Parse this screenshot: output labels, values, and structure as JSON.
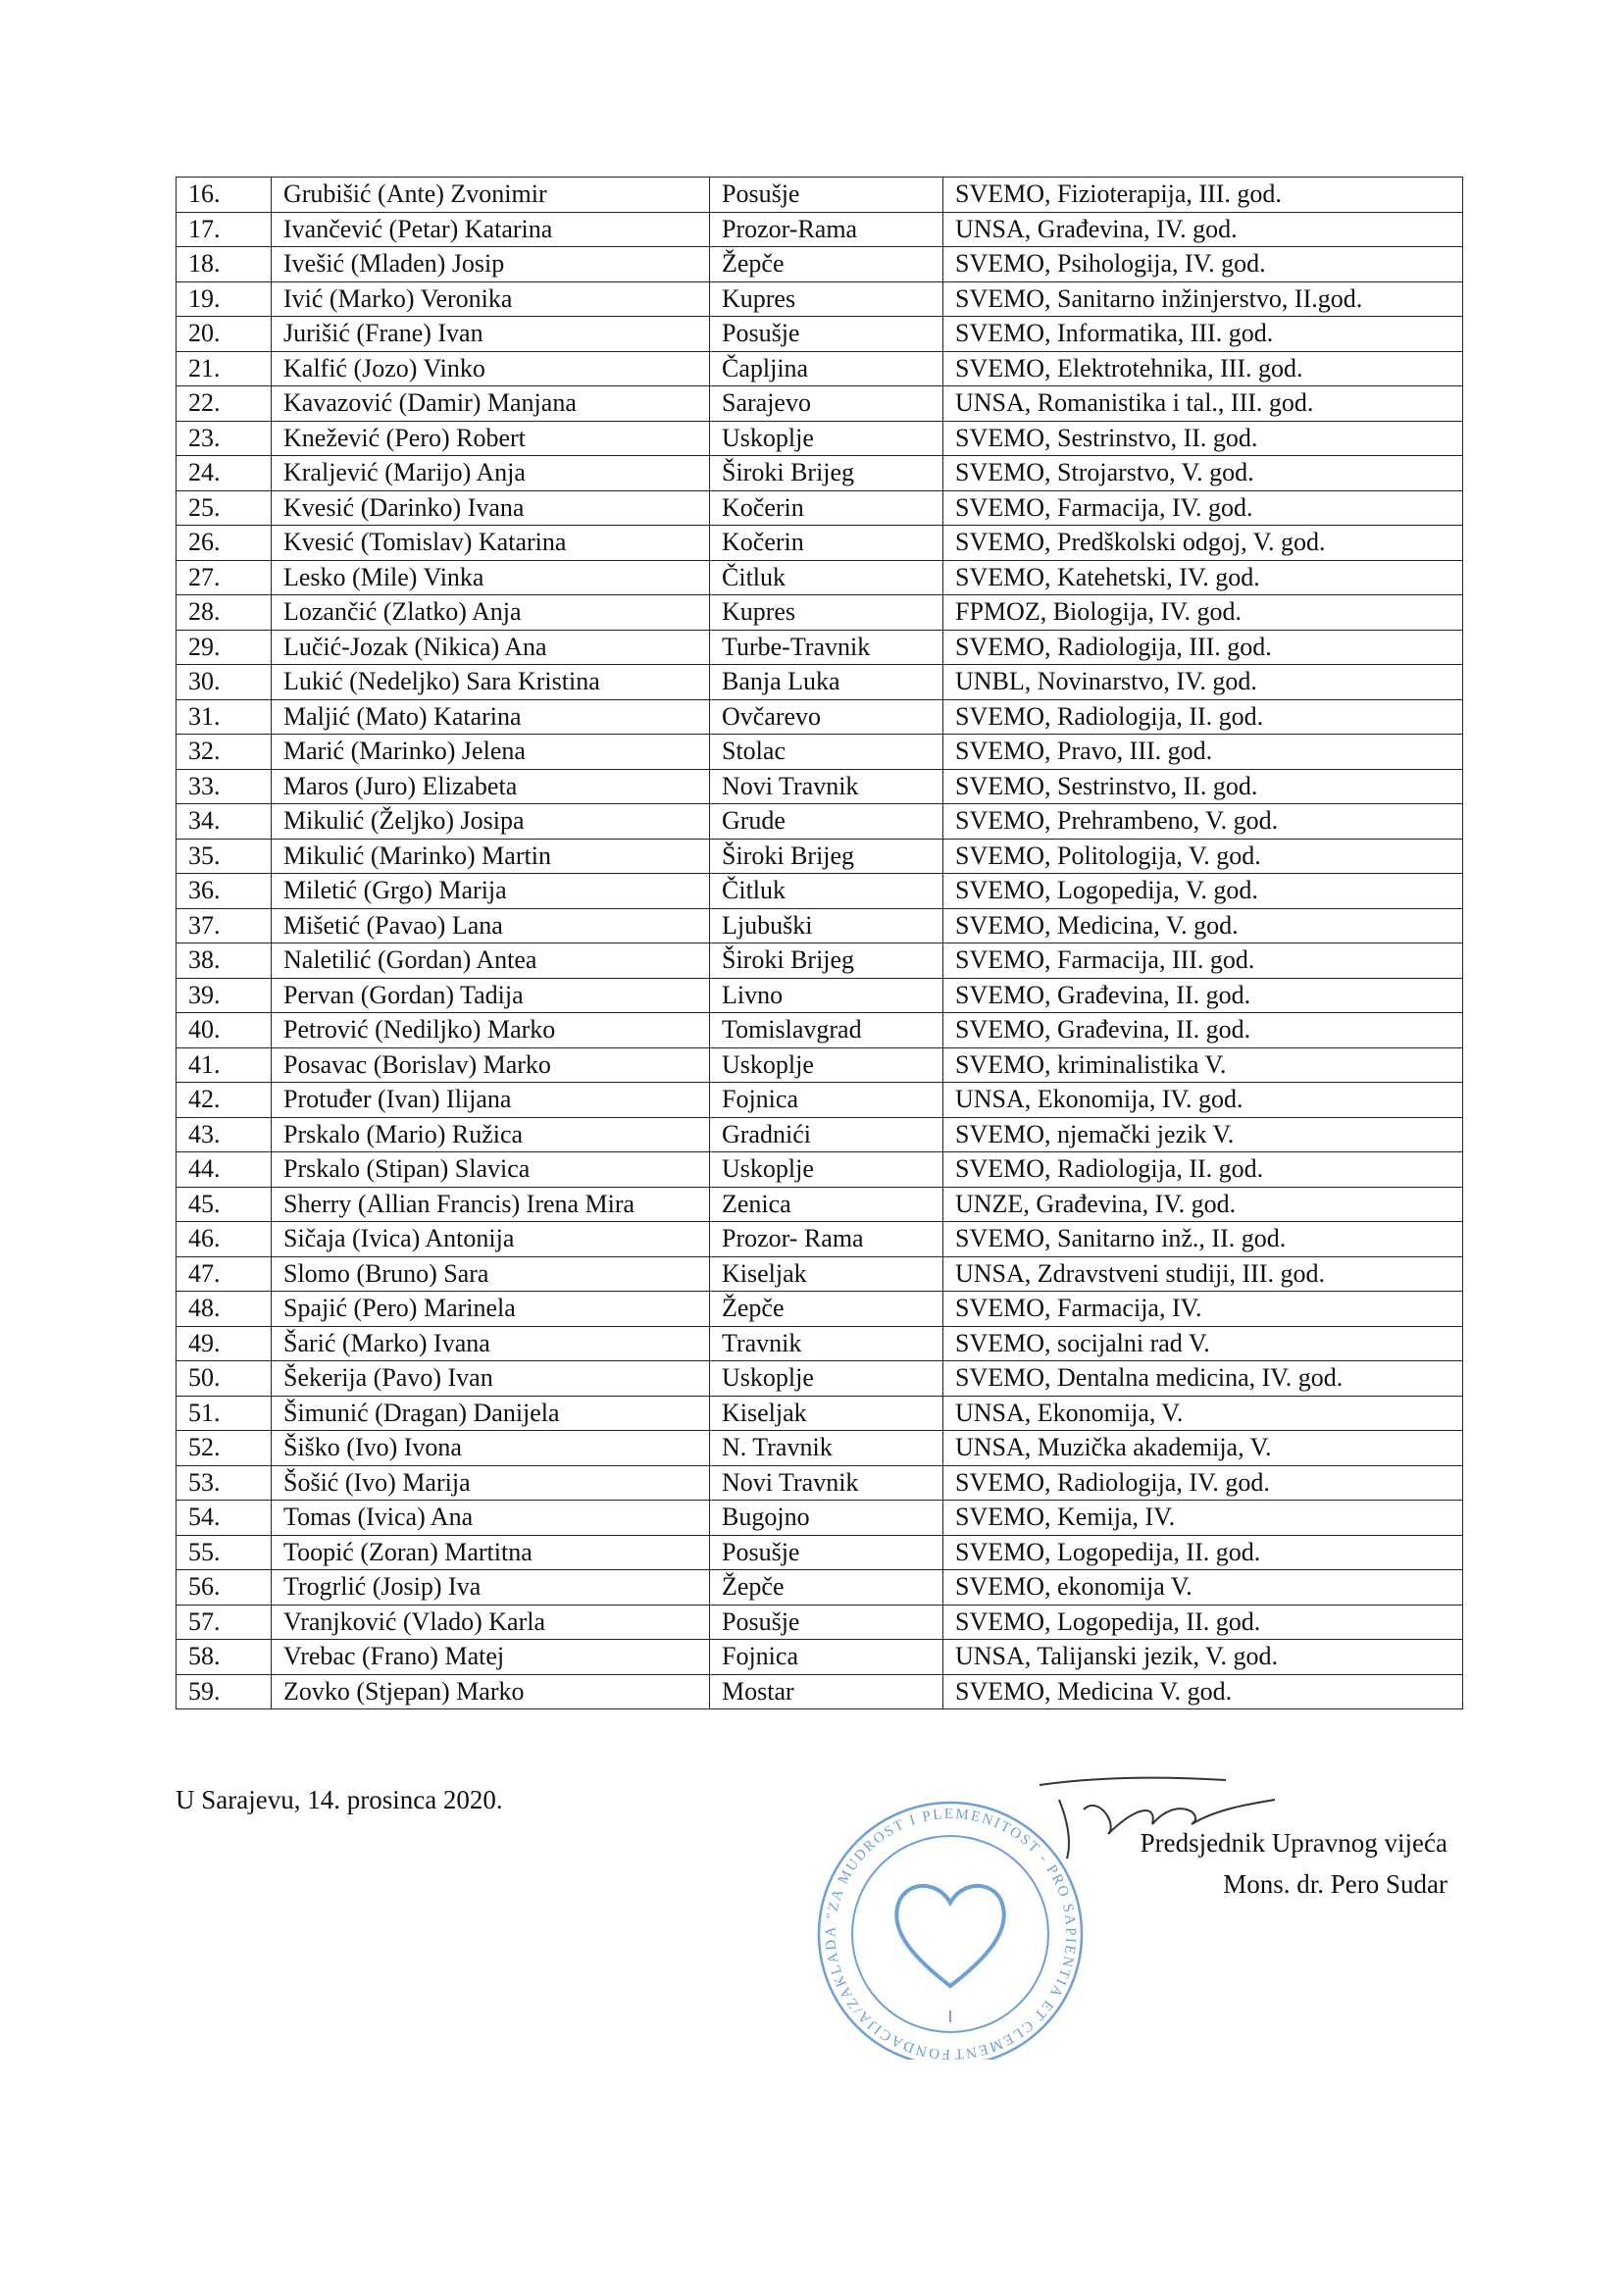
{
  "table": {
    "rows": [
      [
        "16.",
        "Grubišić (Ante) Zvonimir",
        "Posušje",
        "SVEMO, Fizioterapija, III. god."
      ],
      [
        "17.",
        "Ivančević (Petar) Katarina",
        "Prozor-Rama",
        "UNSA, Građevina, IV. god."
      ],
      [
        "18.",
        "Ivešić (Mladen) Josip",
        "Žepče",
        "SVEMO, Psihologija, IV. god."
      ],
      [
        "19.",
        "Ivić (Marko) Veronika",
        "Kupres",
        "SVEMO, Sanitarno inžinjerstvo, II.god."
      ],
      [
        "20.",
        "Jurišić (Frane) Ivan",
        "Posušje",
        "SVEMO, Informatika, III. god."
      ],
      [
        "21.",
        "Kalfić (Jozo) Vinko",
        "Čapljina",
        "SVEMO, Elektrotehnika, III. god."
      ],
      [
        "22.",
        "Kavazović (Damir) Manjana",
        "Sarajevo",
        "UNSA, Romanistika i tal., III. god."
      ],
      [
        "23.",
        "Knežević (Pero) Robert",
        "Uskoplje",
        "SVEMO, Sestrinstvo, II. god."
      ],
      [
        "24.",
        "Kraljević (Marijo) Anja",
        "Široki Brijeg",
        "SVEMO, Strojarstvo, V. god."
      ],
      [
        "25.",
        "Kvesić (Darinko) Ivana",
        "Kočerin",
        "SVEMO, Farmacija, IV. god."
      ],
      [
        "26.",
        "Kvesić (Tomislav) Katarina",
        "Kočerin",
        "SVEMO, Predškolski odgoj, V. god."
      ],
      [
        "27.",
        "Lesko (Mile) Vinka",
        "Čitluk",
        "SVEMO, Katehetski, IV. god."
      ],
      [
        "28.",
        "Lozančić (Zlatko) Anja",
        "Kupres",
        "FPMOZ, Biologija, IV. god."
      ],
      [
        "29.",
        "Lučić-Jozak (Nikica) Ana",
        "Turbe-Travnik",
        "SVEMO, Radiologija, III. god."
      ],
      [
        "30.",
        "Lukić (Nedeljko) Sara Kristina",
        "Banja Luka",
        "UNBL, Novinarstvo, IV. god."
      ],
      [
        "31.",
        "Maljić (Mato) Katarina",
        "Ovčarevo",
        "SVEMO, Radiologija, II. god."
      ],
      [
        "32.",
        "Marić (Marinko) Jelena",
        "Stolac",
        "SVEMO, Pravo, III. god."
      ],
      [
        "33.",
        "Maros (Juro) Elizabeta",
        "Novi Travnik",
        "SVEMO, Sestrinstvo, II. god."
      ],
      [
        "34.",
        "Mikulić (Željko) Josipa",
        "Grude",
        "SVEMO, Prehrambeno, V. god."
      ],
      [
        "35.",
        "Mikulić (Marinko) Martin",
        "Široki Brijeg",
        "SVEMO, Politologija, V. god."
      ],
      [
        "36.",
        "Miletić (Grgo) Marija",
        "Čitluk",
        "SVEMO, Logopedija, V. god."
      ],
      [
        "37.",
        "Mišetić (Pavao) Lana",
        "Ljubuški",
        "SVEMO, Medicina, V. god."
      ],
      [
        "38.",
        "Naletilić (Gordan) Antea",
        "Široki Brijeg",
        "SVEMO, Farmacija, III. god."
      ],
      [
        "39.",
        "Pervan (Gordan) Tadija",
        "Livno",
        "SVEMO, Građevina, II. god."
      ],
      [
        "40.",
        "Petrović (Nediljko) Marko",
        "Tomislavgrad",
        "SVEMO, Građevina, II. god."
      ],
      [
        "41.",
        "Posavac (Borislav) Marko",
        "Uskoplje",
        "SVEMO, kriminalistika V."
      ],
      [
        "42.",
        "Protuđer (Ivan) Ilijana",
        "Fojnica",
        "UNSA, Ekonomija, IV. god."
      ],
      [
        "43.",
        "Prskalo (Mario) Ružica",
        "Gradnići",
        "SVEMO, njemački jezik V."
      ],
      [
        "44.",
        "Prskalo (Stipan) Slavica",
        "Uskoplje",
        "SVEMO, Radiologija, II. god."
      ],
      [
        "45.",
        "Sherry (Allian Francis) Irena Mira",
        "Zenica",
        "UNZE, Građevina, IV. god."
      ],
      [
        "46.",
        "Sičaja (Ivica) Antonija",
        "Prozor- Rama",
        "SVEMO, Sanitarno inž., II. god."
      ],
      [
        "47.",
        "Slomo (Bruno) Sara",
        "Kiseljak",
        "UNSA, Zdravstveni studiji, III. god."
      ],
      [
        "48.",
        "Spajić (Pero) Marinela",
        "Žepče",
        "SVEMO, Farmacija, IV."
      ],
      [
        "49.",
        "Šarić (Marko) Ivana",
        "Travnik",
        "SVEMO, socijalni rad V."
      ],
      [
        "50.",
        "Šekerija (Pavo) Ivan",
        "Uskoplje",
        "SVEMO, Dentalna medicina, IV. god."
      ],
      [
        "51.",
        "Šimunić (Dragan) Danijela",
        "Kiseljak",
        "UNSA, Ekonomija, V."
      ],
      [
        "52.",
        "Šiško (Ivo) Ivona",
        "N. Travnik",
        "UNSA, Muzička akademija, V."
      ],
      [
        "53.",
        "Šošić (Ivo) Marija",
        "Novi Travnik",
        "SVEMO, Radiologija, IV. god."
      ],
      [
        "54.",
        "Tomas (Ivica) Ana",
        "Bugojno",
        "SVEMO, Kemija, IV."
      ],
      [
        "55.",
        "Toopić (Zoran) Martitna",
        "Posušje",
        "SVEMO, Logopedija, II. god."
      ],
      [
        "56.",
        "Trogrlić (Josip) Iva",
        "Žepče",
        "SVEMO, ekonomija V."
      ],
      [
        "57.",
        "Vranjković (Vlado) Karla",
        "Posušje",
        "SVEMO, Logopedija, II. god."
      ],
      [
        "58.",
        "Vrebac (Frano) Matej",
        "Fojnica",
        "UNSA, Talijanski jezik, V. god."
      ],
      [
        "59.",
        "Zovko (Stjepan) Marko",
        "Mostar",
        "SVEMO, Medicina V. god."
      ]
    ]
  },
  "footer": {
    "place_date": "U Sarajevu, 14. prosinca 2020.",
    "signatory_title": "Predsjednik Upravnog vijeća",
    "signatory_name": "Mons. dr. Pero Sudar"
  },
  "stamp": {
    "text": "FONDACIJA/ZAKLADA \"ZA MUDROST I PLEMENITOST - PRO SAPIENTIA ET CLEMENTIA\" * SARAJEVO *"
  }
}
